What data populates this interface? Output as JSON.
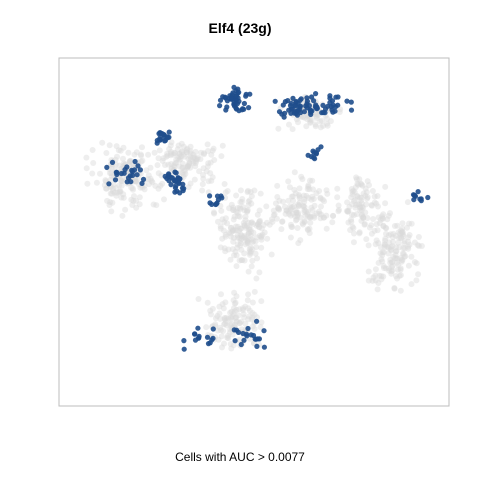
{
  "chart_data": {
    "type": "scatter",
    "title": "Elf4 (23g)",
    "xlabel": "Cells with AUC > 0.0077",
    "ylabel": "",
    "grid": false,
    "legend": "none",
    "colors": {
      "background_cells": "#d9d9d9",
      "positive_cells": "#1f4e8c",
      "frame": "#bdbdbd"
    },
    "axis_ticks_visible": false,
    "series": [
      {
        "role": "background-cells",
        "regions": [
          {
            "cx": 0.17,
            "cy": 0.66,
            "rx": 0.13,
            "ry": 0.12,
            "count": 170
          },
          {
            "cx": 0.33,
            "cy": 0.7,
            "rx": 0.11,
            "ry": 0.1,
            "count": 120
          },
          {
            "cx": 0.47,
            "cy": 0.5,
            "rx": 0.09,
            "ry": 0.16,
            "count": 170
          },
          {
            "cx": 0.45,
            "cy": 0.24,
            "rx": 0.11,
            "ry": 0.12,
            "count": 120
          },
          {
            "cx": 0.62,
            "cy": 0.57,
            "rx": 0.1,
            "ry": 0.12,
            "count": 130
          },
          {
            "cx": 0.77,
            "cy": 0.58,
            "rx": 0.08,
            "ry": 0.13,
            "count": 90
          },
          {
            "cx": 0.86,
            "cy": 0.45,
            "rx": 0.1,
            "ry": 0.18,
            "count": 150
          },
          {
            "cx": 0.64,
            "cy": 0.84,
            "rx": 0.1,
            "ry": 0.06,
            "count": 90
          }
        ]
      },
      {
        "role": "auc-positive-cells",
        "regions": [
          {
            "cx": 0.45,
            "cy": 0.88,
            "rx": 0.05,
            "ry": 0.05,
            "count": 45
          },
          {
            "cx": 0.64,
            "cy": 0.87,
            "rx": 0.13,
            "ry": 0.05,
            "count": 75
          },
          {
            "cx": 0.27,
            "cy": 0.77,
            "rx": 0.04,
            "ry": 0.03,
            "count": 20
          },
          {
            "cx": 0.18,
            "cy": 0.67,
            "rx": 0.07,
            "ry": 0.06,
            "count": 25
          },
          {
            "cx": 0.3,
            "cy": 0.64,
            "rx": 0.05,
            "ry": 0.06,
            "count": 30
          },
          {
            "cx": 0.65,
            "cy": 0.72,
            "rx": 0.03,
            "ry": 0.04,
            "count": 10
          },
          {
            "cx": 0.92,
            "cy": 0.6,
            "rx": 0.04,
            "ry": 0.02,
            "count": 10
          },
          {
            "cx": 0.4,
            "cy": 0.59,
            "rx": 0.04,
            "ry": 0.03,
            "count": 10
          },
          {
            "cx": 0.48,
            "cy": 0.2,
            "rx": 0.07,
            "ry": 0.05,
            "count": 20
          },
          {
            "cx": 0.35,
            "cy": 0.2,
            "rx": 0.06,
            "ry": 0.05,
            "count": 15
          }
        ]
      }
    ]
  }
}
